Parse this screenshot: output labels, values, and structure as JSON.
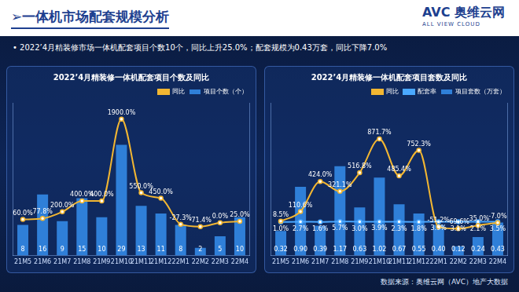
{
  "header": {
    "title": "➢一体机市场配套规模分析",
    "subtitle": "•  2022’4月精装修市场一体机配套项目个数10个，同比上升25.0%；配套规模为0.43万套，同比下降7.0%",
    "logo": "AVC 奥维云网",
    "logo_sub": "ALL VIEW CLOUD",
    "source": "数据来源：奥维云网（AVC）地产大数据"
  },
  "chart_data": [
    {
      "type": "bar",
      "title": "2022’4月精装修一体机配套项目个数及同比",
      "categories": [
        "21M5",
        "21M6",
        "21M7",
        "21M8",
        "21M9",
        "21M10",
        "21M11",
        "21M12",
        "22M1",
        "22M2",
        "22M3",
        "22M4"
      ],
      "series": [
        {
          "name": "项目个数（个）",
          "type": "bar",
          "color": "#2f7fd8",
          "values": [
            8,
            16,
            9,
            15,
            10,
            29,
            13,
            11,
            8,
            2,
            5,
            10
          ]
        },
        {
          "name": "同比",
          "type": "line",
          "axis": "y2",
          "color": "#f2b632",
          "marker": "circle",
          "values": [
            60.0,
            77.8,
            200.0,
            400.0,
            400.0,
            1900.0,
            550.0,
            450.0,
            -27.3,
            -71.4,
            0.0,
            25.0
          ],
          "value_labels": [
            "60.0%",
            "77.8%",
            "200.0%",
            "400.0%",
            "400.0%",
            "1900.0%",
            "550.0%",
            "450.0%",
            "-27.3%",
            "-71.4%",
            "0.0%",
            "25.0%"
          ]
        }
      ],
      "ylim": [
        0,
        40
      ],
      "y2lim": [
        -600,
        2200
      ],
      "data_labels": true,
      "tick_labels": "x",
      "grid": false,
      "legend": "top"
    },
    {
      "type": "bar",
      "title": "2022’4月精装修一体机配套项目套数及同比",
      "categories": [
        "21M5",
        "21M6",
        "21M7",
        "21M8",
        "21M9",
        "21M10",
        "21M11",
        "21M12",
        "22M1",
        "22M2",
        "22M3",
        "22M4"
      ],
      "series": [
        {
          "name": "项目套数（万套）",
          "type": "bar",
          "color": "#2f7fd8",
          "values": [
            0.32,
            0.9,
            0.39,
            1.17,
            0.63,
            1.02,
            0.67,
            0.55,
            0.4,
            0.12,
            0.24,
            0.43
          ],
          "value_labels": [
            "0.32",
            "0.90",
            "0.39",
            "1.17",
            "0.63",
            "1.02",
            "0.67",
            "0.55",
            "0.40",
            "0.12",
            "0.24",
            "0.43"
          ]
        },
        {
          "name": "同比",
          "type": "line",
          "axis": "y2",
          "color": "#f2b632",
          "marker": "circle",
          "values": [
            8.5,
            110.6,
            424.0,
            321.1,
            516.8,
            871.7,
            485.4,
            752.3,
            -51.2,
            -69.6,
            -35.0,
            -7.0
          ],
          "value_labels": [
            "8.5%",
            "110.6%",
            "424.0%",
            "321.1%",
            "516.8%",
            "871.7%",
            "485.4%",
            "752.3%",
            "-51.2%",
            "-69.6%",
            "-35.0%",
            "-7.0%"
          ]
        },
        {
          "name": "配套率",
          "type": "line",
          "axis": "y2",
          "color": "#4aa8ff",
          "marker": "circle",
          "values": [
            1.0,
            2.7,
            1.6,
            5.7,
            3.0,
            3.9,
            2.3,
            1.8,
            3.9,
            3.1,
            2.1,
            3.5
          ],
          "value_labels": [
            "1.0%",
            "2.7%",
            "1.6%",
            "5.7%",
            "3.0%",
            "3.9%",
            "2.3%",
            "1.8%",
            "3.9%",
            "3.1%",
            "2.1%",
            "3.5%"
          ]
        }
      ],
      "ylim": [
        0,
        2
      ],
      "y2lim": [
        -350,
        1250
      ],
      "data_labels": true,
      "tick_labels": "x",
      "grid": false,
      "legend": "top"
    }
  ]
}
